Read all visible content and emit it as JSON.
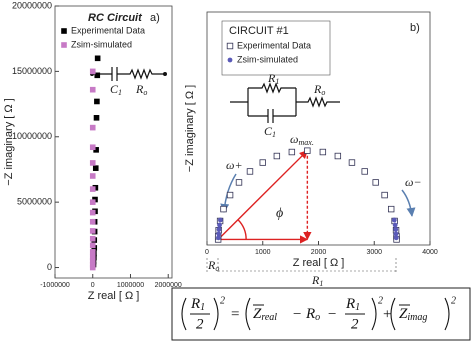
{
  "chart_data": [
    {
      "type": "scatter",
      "title": "RC Circuit",
      "panel_label": "a)",
      "xlabel": "Z real [ Ω ]",
      "ylabel": "−Z imaginary [ Ω ]",
      "xlim": [
        -1000000,
        2100000
      ],
      "ylim": [
        -800000,
        20000000
      ],
      "xticks": [
        -1000000,
        0,
        1000000,
        2000000
      ],
      "yticks": [
        0,
        5000000,
        10000000,
        15000000,
        20000000
      ],
      "circuit_labels": [
        {
          "text": "C",
          "sub": "1"
        },
        {
          "text": "R",
          "sub": "o"
        }
      ],
      "series": [
        {
          "name": "Experimental Data",
          "color": "#000000",
          "marker": "square-filled",
          "x": [
            130000,
            120000,
            110000,
            100000,
            90000,
            80000,
            70000,
            60000,
            60000,
            50000,
            50000,
            40000,
            40000,
            30000,
            30000,
            20000,
            20000
          ],
          "y": [
            16000000,
            14700000,
            12700000,
            11450000,
            9000000,
            7600000,
            6100000,
            5200000,
            4300000,
            3500000,
            2750000,
            2100000,
            1500000,
            1070000,
            760000,
            460000,
            230000
          ]
        },
        {
          "name": "Zsim-simulated",
          "color": "#c77ac6",
          "marker": "square-filled",
          "x": [
            0,
            0,
            0,
            0,
            0,
            0,
            0,
            0,
            0,
            0,
            0,
            0,
            0,
            0,
            0,
            0,
            0,
            0
          ],
          "y": [
            15000000,
            13600000,
            10700000,
            9200000,
            8000000,
            7000000,
            6000000,
            5000000,
            4200000,
            3500000,
            2800000,
            2200000,
            1700000,
            1200000,
            800000,
            500000,
            200000,
            0
          ]
        }
      ]
    },
    {
      "type": "scatter",
      "title": "CIRCUIT #1",
      "panel_label": "b)",
      "xlabel": "Z real [ Ω ]",
      "ylabel": "−Z imaginary [ Ω ]",
      "xlim": [
        0,
        4000
      ],
      "ylim": [
        -100,
        4100
      ],
      "xticks": [
        0,
        1000,
        2000,
        3000,
        4000
      ],
      "circuit_labels": [
        {
          "text": "R",
          "sub": "1"
        },
        {
          "text": "R",
          "sub": "o"
        },
        {
          "text": "C",
          "sub": "1"
        }
      ],
      "annotations": {
        "omega_max": {
          "text": "ω",
          "sub": "max."
        },
        "omega_plus": "ω+",
        "omega_minus": "ω−",
        "phi": "ϕ",
        "ro": {
          "text": "R",
          "sub": "o"
        },
        "r1": {
          "text": "R",
          "sub": "1"
        }
      },
      "series": [
        {
          "name": "Experimental Data",
          "color": "#333355",
          "marker": "square-open",
          "x": [
            200,
            201,
            209,
            235,
            296,
            414,
            574,
            771,
            1000,
            1253,
            1522,
            1800,
            2078,
            2347,
            2600,
            2829,
            3026,
            3186,
            3304,
            3365,
            3391,
            3399,
            3400
          ],
          "y": [
            0,
            56,
            167,
            333,
            547,
            800,
            1028,
            1226,
            1386,
            1504,
            1576,
            1600,
            1576,
            1504,
            1386,
            1226,
            1028,
            800,
            547,
            333,
            167,
            56,
            0
          ]
        },
        {
          "name": "Zsim-simulated",
          "color": "#5a5ab8",
          "marker": "circle",
          "x": [
            205,
            210,
            215,
            225,
            240,
            3395,
            3390,
            3385,
            3375,
            3360
          ],
          "y": [
            30,
            100,
            180,
            260,
            350,
            30,
            100,
            180,
            260,
            350
          ]
        }
      ]
    }
  ],
  "equation": {
    "r": "R",
    "one": "1",
    "two": "2",
    "square": "2",
    "equals": "=",
    "minus": "−",
    "plus": "+",
    "z": "Z",
    "real": "real",
    "o": "o",
    "imag": "imag"
  }
}
